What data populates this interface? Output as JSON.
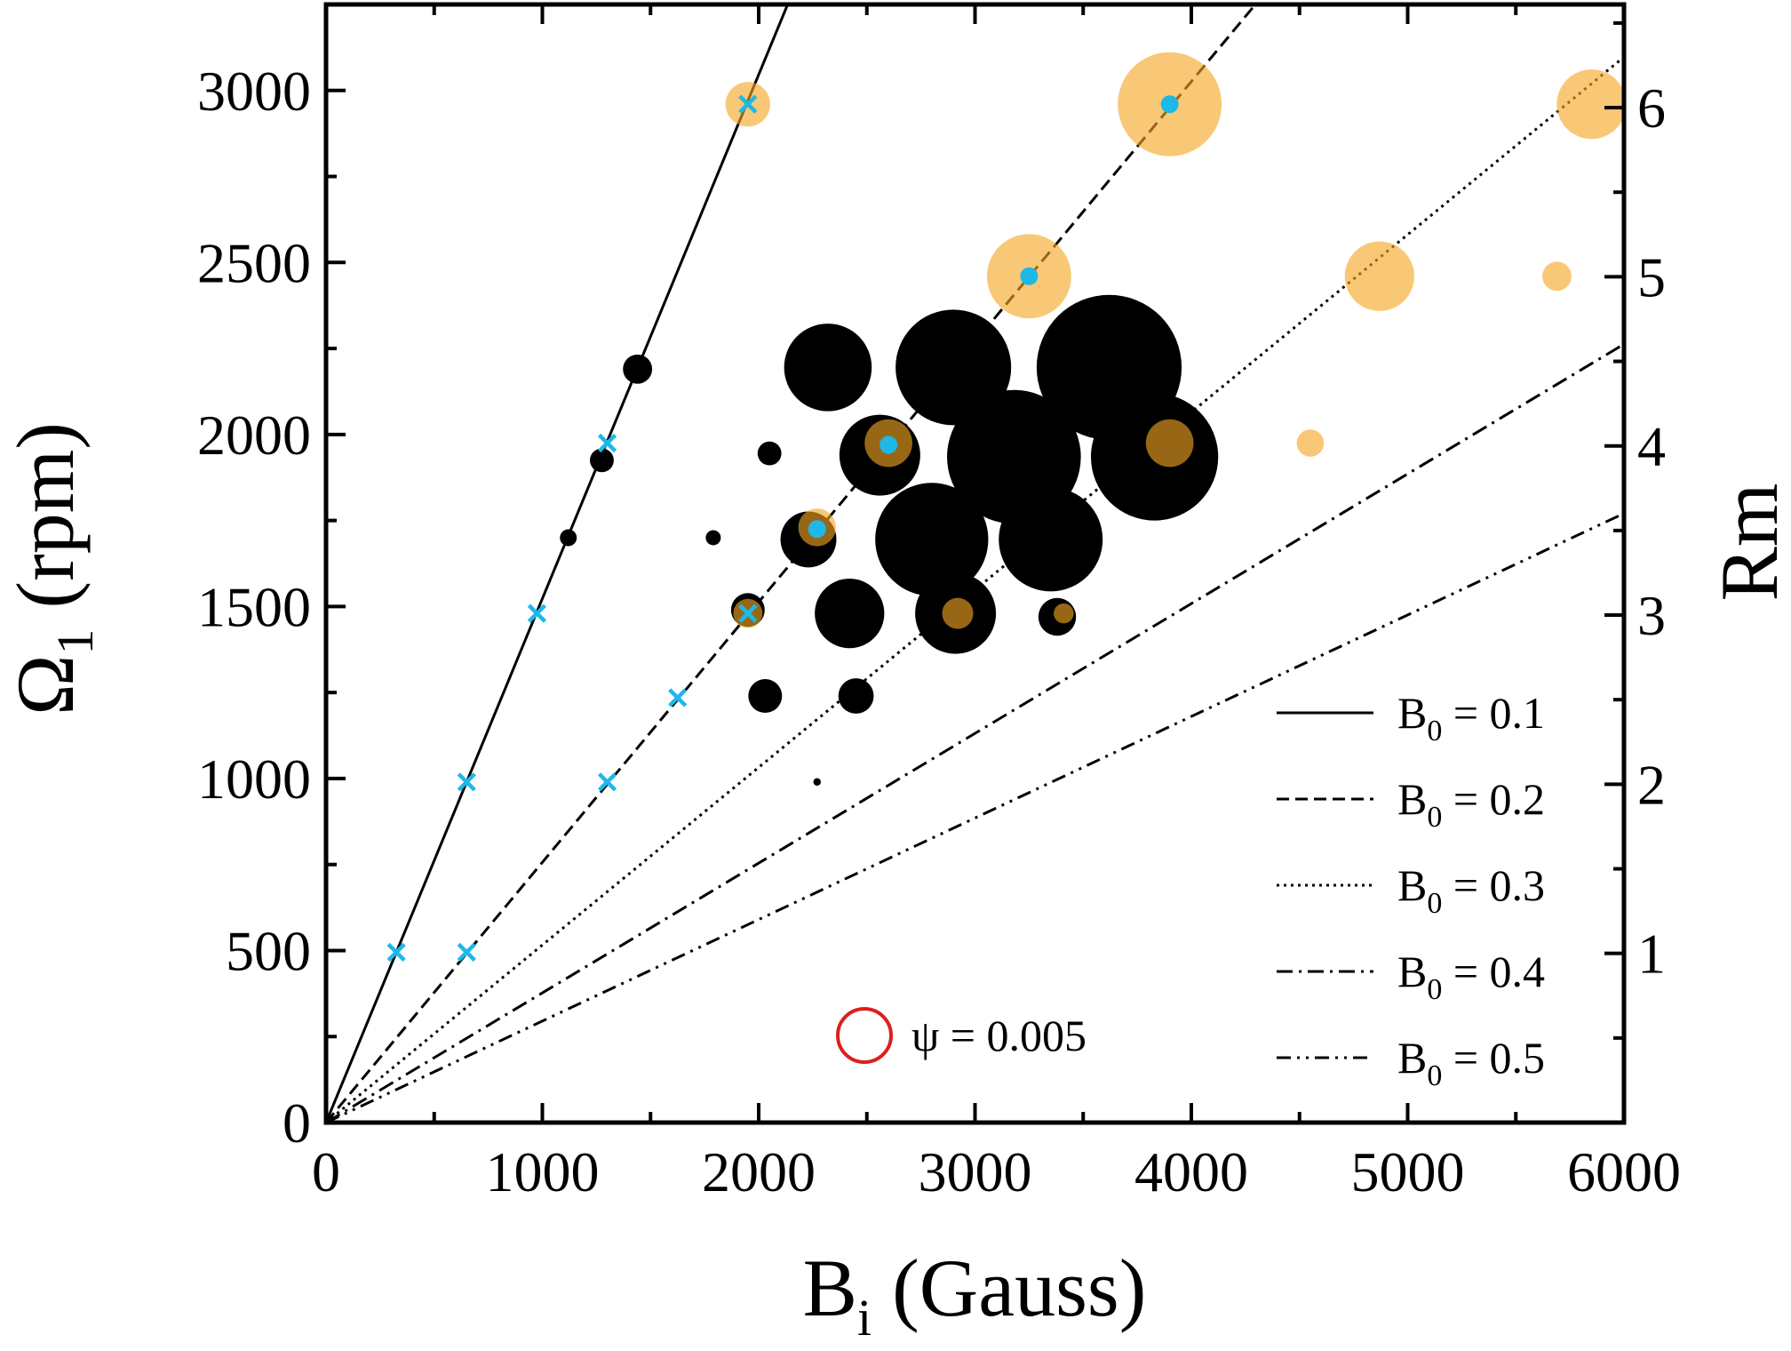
{
  "chart_data": {
    "type": "scatter",
    "xlabel_main": "B",
    "xlabel_sub": "i",
    "xlabel_rest": " (Gauss)",
    "ylabel_main": "Ω",
    "ylabel_sub": "1",
    "ylabel_rest": " (rpm)",
    "y2label": "Rm",
    "xlim": [
      0,
      6000
    ],
    "ylim": [
      0,
      3250
    ],
    "y2lim": [
      0,
      6.61
    ],
    "x_ticks": [
      0,
      1000,
      2000,
      3000,
      4000,
      5000,
      6000
    ],
    "x_tick_labels": [
      "0",
      "1000",
      "2000",
      "3000",
      "4000",
      "5000",
      "6000"
    ],
    "y_ticks": [
      0,
      500,
      1000,
      1500,
      2000,
      2500,
      3000
    ],
    "y_tick_labels": [
      "0",
      "500",
      "1000",
      "1500",
      "2000",
      "2500",
      "3000"
    ],
    "y2_ticks": [
      1,
      2,
      3,
      4,
      5,
      6
    ],
    "y2_tick_labels": [
      "1",
      "2",
      "3",
      "4",
      "5",
      "6"
    ],
    "grid": false,
    "legend": {
      "placement": "bottom-right",
      "entries": [
        {
          "prefix": "B",
          "sub": "0",
          "text": " = 0.1",
          "style": "solid"
        },
        {
          "prefix": "B",
          "sub": "0",
          "text": " = 0.2",
          "style": "dashed"
        },
        {
          "prefix": "B",
          "sub": "0",
          "text": " = 0.3",
          "style": "dotted"
        },
        {
          "prefix": "B",
          "sub": "0",
          "text": " = 0.4",
          "style": "dashdot"
        },
        {
          "prefix": "B",
          "sub": "0",
          "text": " = 0.5",
          "style": "dashdotdot"
        }
      ]
    },
    "size_key": {
      "label": "ψ = 0.005",
      "psi": 0.005,
      "color": "#dd1f1f"
    },
    "lines": [
      {
        "style": "solid",
        "slope": 1.523
      },
      {
        "style": "dashed",
        "slope": 0.7565
      },
      {
        "style": "dotted",
        "slope": 0.5162
      },
      {
        "style": "dashdot",
        "slope": 0.3771
      },
      {
        "style": "dashdotdot",
        "slope": 0.2951
      }
    ],
    "series": [
      {
        "color": "#000000",
        "points": [
          {
            "x": 1440,
            "y": 2190,
            "psi": 0.0015
          },
          {
            "x": 1275,
            "y": 1925,
            "psi": 0.001
          },
          {
            "x": 1120,
            "y": 1700,
            "psi": 0.0005
          },
          {
            "x": 2320,
            "y": 2195,
            "psi": 0.0135
          },
          {
            "x": 2900,
            "y": 2195,
            "psi": 0.0235
          },
          {
            "x": 3620,
            "y": 2195,
            "psi": 0.037
          },
          {
            "x": 2050,
            "y": 1945,
            "psi": 0.001
          },
          {
            "x": 2560,
            "y": 1940,
            "psi": 0.0115
          },
          {
            "x": 3180,
            "y": 1935,
            "psi": 0.0315
          },
          {
            "x": 3830,
            "y": 1935,
            "psi": 0.0285
          },
          {
            "x": 1790,
            "y": 1700,
            "psi": 0.0004
          },
          {
            "x": 2230,
            "y": 1695,
            "psi": 0.0055
          },
          {
            "x": 2800,
            "y": 1695,
            "psi": 0.0225
          },
          {
            "x": 3350,
            "y": 1695,
            "psi": 0.019
          },
          {
            "x": 1950,
            "y": 1490,
            "psi": 0.002
          },
          {
            "x": 2420,
            "y": 1480,
            "psi": 0.0085
          },
          {
            "x": 2910,
            "y": 1480,
            "psi": 0.0115
          },
          {
            "x": 3380,
            "y": 1470,
            "psi": 0.0025
          },
          {
            "x": 2030,
            "y": 1240,
            "psi": 0.002
          },
          {
            "x": 2450,
            "y": 1240,
            "psi": 0.0022
          },
          {
            "x": 2270,
            "y": 990,
            "psi": 0.0001
          }
        ]
      },
      {
        "color": "#f5a623",
        "opacity": 0.62,
        "points": [
          {
            "x": 1950,
            "y": 2960,
            "psi": 0.0035
          },
          {
            "x": 3900,
            "y": 2960,
            "psi": 0.019
          },
          {
            "x": 5850,
            "y": 2960,
            "psi": 0.0085
          },
          {
            "x": 3250,
            "y": 2460,
            "psi": 0.0125
          },
          {
            "x": 4870,
            "y": 2460,
            "psi": 0.0085
          },
          {
            "x": 5690,
            "y": 2460,
            "psi": 0.0015
          },
          {
            "x": 2600,
            "y": 1975,
            "psi": 0.004
          },
          {
            "x": 3900,
            "y": 1975,
            "psi": 0.004
          },
          {
            "x": 4550,
            "y": 1975,
            "psi": 0.0013
          },
          {
            "x": 2270,
            "y": 1730,
            "psi": 0.0025
          },
          {
            "x": 1950,
            "y": 1480,
            "psi": 0.0015
          },
          {
            "x": 2920,
            "y": 1480,
            "psi": 0.0017
          },
          {
            "x": 3410,
            "y": 1480,
            "psi": 0.0007
          }
        ]
      },
      {
        "color": "#1eb8e8",
        "marker": "x",
        "points": [
          {
            "x": 325,
            "y": 495
          },
          {
            "x": 650,
            "y": 990
          },
          {
            "x": 975,
            "y": 1480
          },
          {
            "x": 1300,
            "y": 1975
          },
          {
            "x": 1950,
            "y": 2960
          },
          {
            "x": 650,
            "y": 495
          },
          {
            "x": 1300,
            "y": 990
          },
          {
            "x": 1625,
            "y": 1235
          },
          {
            "x": 1950,
            "y": 1480
          }
        ]
      },
      {
        "color": "#1eb8e8",
        "marker": "dot",
        "points": [
          {
            "x": 2270,
            "y": 1725
          },
          {
            "x": 2600,
            "y": 1970
          },
          {
            "x": 3250,
            "y": 2460
          },
          {
            "x": 3900,
            "y": 2960
          }
        ]
      }
    ]
  }
}
